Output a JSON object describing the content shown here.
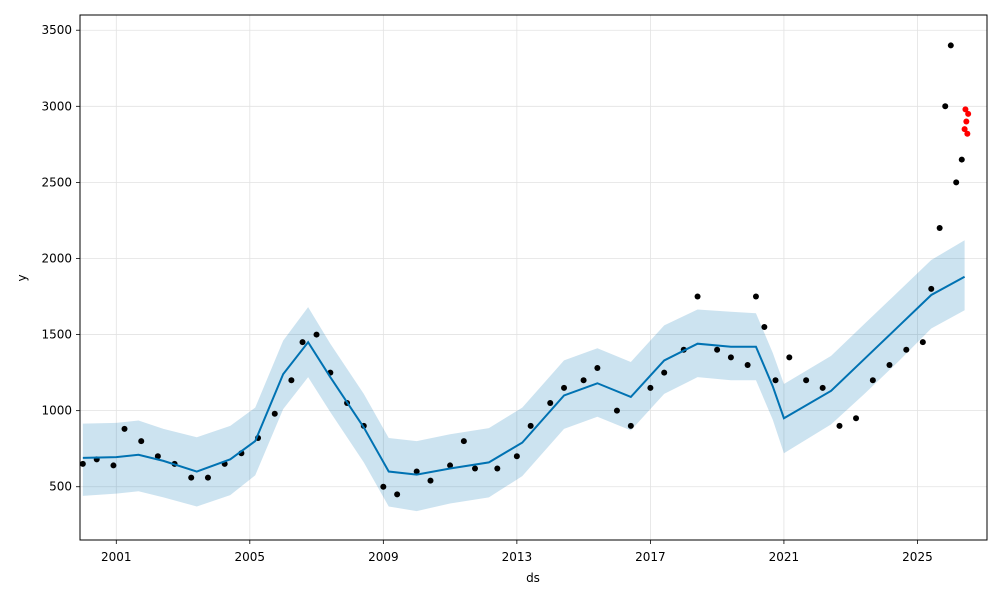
{
  "chart_data": {
    "type": "line",
    "title": "",
    "xlabel": "ds",
    "ylabel": "y",
    "x_ticks": [
      "2001",
      "2005",
      "2009",
      "2013",
      "2017",
      "2021",
      "2025"
    ],
    "y_ticks": [
      "500",
      "1000",
      "1500",
      "2000",
      "2500",
      "3000",
      "3500"
    ],
    "xlim": [
      "1999-12-01",
      "2027-02-01"
    ],
    "ylim": [
      150,
      3600
    ],
    "grid": true,
    "legend": "none",
    "colors": {
      "observed": "#000000",
      "forecast_line": "#0072B2",
      "uncertainty_band": "#0072B2",
      "recent_points": "#ff0000"
    },
    "series": [
      {
        "name": "",
        "role": "forecast",
        "points": [
          [
            "2000-01-01",
            690,
            440,
            915
          ],
          [
            "2001-01-01",
            695,
            455,
            920
          ],
          [
            "2001-09-01",
            710,
            470,
            935
          ],
          [
            "2002-06-01",
            670,
            430,
            880
          ],
          [
            "2003-06-01",
            600,
            370,
            825
          ],
          [
            "2004-06-01",
            680,
            445,
            900
          ],
          [
            "2005-03-01",
            800,
            575,
            1020
          ],
          [
            "2006-01-01",
            1240,
            1010,
            1460
          ],
          [
            "2006-10-01",
            1450,
            1220,
            1680
          ],
          [
            "2007-06-01",
            1220,
            990,
            1440
          ],
          [
            "2008-06-01",
            890,
            660,
            1110
          ],
          [
            "2009-03-01",
            600,
            370,
            820
          ],
          [
            "2010-01-01",
            580,
            340,
            800
          ],
          [
            "2011-01-01",
            620,
            390,
            845
          ],
          [
            "2012-03-01",
            660,
            430,
            885
          ],
          [
            "2013-03-01",
            790,
            570,
            1020
          ],
          [
            "2014-06-01",
            1100,
            880,
            1330
          ],
          [
            "2015-06-01",
            1180,
            960,
            1410
          ],
          [
            "2016-06-01",
            1090,
            870,
            1320
          ],
          [
            "2017-06-01",
            1330,
            1110,
            1560
          ],
          [
            "2018-06-01",
            1440,
            1220,
            1665
          ],
          [
            "2019-06-01",
            1420,
            1200,
            1650
          ],
          [
            "2020-03-01",
            1420,
            1200,
            1640
          ],
          [
            "2020-09-01",
            1160,
            940,
            1380
          ],
          [
            "2021-01-01",
            950,
            720,
            1175
          ],
          [
            "2022-06-01",
            1130,
            910,
            1360
          ],
          [
            "2023-06-01",
            1340,
            1110,
            1570
          ],
          [
            "2024-06-01",
            1550,
            1320,
            1780
          ],
          [
            "2025-06-01",
            1760,
            1540,
            1990
          ],
          [
            "2026-06-01",
            1880,
            1660,
            2120
          ]
        ]
      },
      {
        "name": "",
        "role": "observed",
        "points": [
          [
            "2000-01-01",
            650
          ],
          [
            "2000-06-01",
            680
          ],
          [
            "2000-12-01",
            640
          ],
          [
            "2001-04-01",
            880
          ],
          [
            "2001-10-01",
            800
          ],
          [
            "2002-04-01",
            700
          ],
          [
            "2002-10-01",
            650
          ],
          [
            "2003-04-01",
            560
          ],
          [
            "2003-10-01",
            560
          ],
          [
            "2004-04-01",
            650
          ],
          [
            "2004-10-01",
            720
          ],
          [
            "2005-04-01",
            820
          ],
          [
            "2005-10-01",
            980
          ],
          [
            "2006-04-01",
            1200
          ],
          [
            "2006-08-01",
            1450
          ],
          [
            "2007-01-01",
            1500
          ],
          [
            "2007-06-01",
            1250
          ],
          [
            "2007-12-01",
            1050
          ],
          [
            "2008-06-01",
            900
          ],
          [
            "2009-01-01",
            500
          ],
          [
            "2009-06-01",
            450
          ],
          [
            "2010-01-01",
            600
          ],
          [
            "2010-06-01",
            540
          ],
          [
            "2011-01-01",
            640
          ],
          [
            "2011-06-01",
            800
          ],
          [
            "2011-10-01",
            620
          ],
          [
            "2012-06-01",
            620
          ],
          [
            "2013-01-01",
            700
          ],
          [
            "2013-06-01",
            900
          ],
          [
            "2014-01-01",
            1050
          ],
          [
            "2014-06-01",
            1150
          ],
          [
            "2015-01-01",
            1200
          ],
          [
            "2015-06-01",
            1280
          ],
          [
            "2016-01-01",
            1000
          ],
          [
            "2016-06-01",
            900
          ],
          [
            "2017-01-01",
            1150
          ],
          [
            "2017-06-01",
            1250
          ],
          [
            "2018-01-01",
            1400
          ],
          [
            "2018-06-01",
            1750
          ],
          [
            "2019-01-01",
            1400
          ],
          [
            "2019-06-01",
            1350
          ],
          [
            "2019-12-01",
            1300
          ],
          [
            "2020-03-01",
            1750
          ],
          [
            "2020-06-01",
            1550
          ],
          [
            "2020-10-01",
            1200
          ],
          [
            "2021-03-01",
            1350
          ],
          [
            "2021-09-01",
            1200
          ],
          [
            "2022-03-01",
            1150
          ],
          [
            "2022-09-01",
            900
          ],
          [
            "2023-03-01",
            950
          ],
          [
            "2023-09-01",
            1200
          ],
          [
            "2024-03-01",
            1300
          ],
          [
            "2024-09-01",
            1400
          ],
          [
            "2025-03-01",
            1450
          ],
          [
            "2025-06-01",
            1800
          ],
          [
            "2025-09-01",
            2200
          ],
          [
            "2025-11-01",
            3000
          ],
          [
            "2026-01-01",
            3400
          ],
          [
            "2026-03-01",
            2500
          ],
          [
            "2026-05-01",
            2650
          ]
        ]
      },
      {
        "name": "",
        "role": "recent",
        "points": [
          [
            "2026-06-01",
            2850
          ],
          [
            "2026-06-10",
            2980
          ],
          [
            "2026-06-20",
            2900
          ],
          [
            "2026-07-01",
            2820
          ],
          [
            "2026-07-10",
            2950
          ]
        ]
      }
    ]
  }
}
